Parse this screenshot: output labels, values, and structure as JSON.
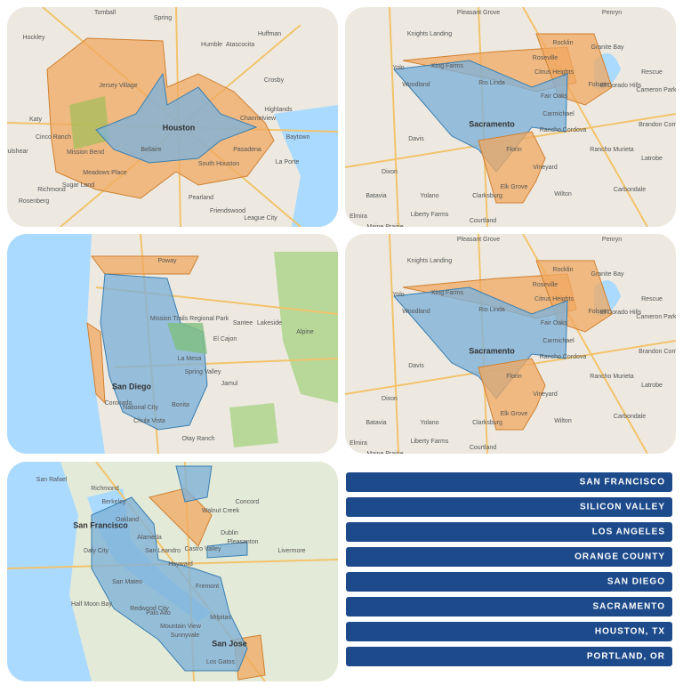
{
  "maps": [
    {
      "labels": [
        "Tomball",
        "Spring",
        "Humble",
        "Atascocita",
        "Huffman",
        "Hockley",
        "Jersey Village",
        "Katy",
        "Cinco Ranch",
        "Houston",
        "Mission Bend",
        "Bellaire",
        "Pasadena",
        "South Houston",
        "Baytown",
        "Highlands",
        "Channelview",
        "Meadows Place",
        "Sugar Land",
        "Pearland",
        "Richmond",
        "Rosenberg",
        "Friendswood",
        "League City",
        "La Porte",
        "Fulshear",
        "Crosby"
      ]
    },
    {
      "labels": [
        "Pleasant Grove",
        "Penryn",
        "Knights Landing",
        "Rocklin",
        "Granite Bay",
        "Roseville",
        "Citrus Heights",
        "Folsom",
        "El Dorado Hills",
        "Rescue",
        "Woodland",
        "Rio Linda",
        "Fair Oaks",
        "Cameron Park",
        "Sacramento",
        "Carmichael",
        "Rancho Cordova",
        "Davis",
        "Florin",
        "Vineyard",
        "Elk Grove",
        "Dixon",
        "Batavia",
        "Yolano",
        "Clarksburg",
        "Wilton",
        "Liberty Farms",
        "Courtland",
        "Elmira",
        "Maine Prairie",
        "Rancho Murieta",
        "Latrobe",
        "Carbondale",
        "Brandon Corner",
        "Yolo",
        "King Farms"
      ]
    },
    {
      "labels": [
        "Poway",
        "San Diego",
        "La Mesa",
        "El Cajon",
        "Chula Vista",
        "Santee",
        "Lakeside",
        "Alpine",
        "Spring Valley",
        "Jamul",
        "Coronado",
        "Bonita",
        "National City",
        "Mission Trails Regional Park",
        "Otay Ranch"
      ]
    },
    {
      "labels": [
        "Pleasant Grove",
        "Penryn",
        "Knights Landing",
        "Rocklin",
        "Granite Bay",
        "Roseville",
        "Citrus Heights",
        "Folsom",
        "El Dorado Hills",
        "Rescue",
        "Woodland",
        "Rio Linda",
        "Fair Oaks",
        "Cameron Park",
        "Sacramento",
        "Carmichael",
        "Rancho Cordova",
        "Davis",
        "Florin",
        "Vineyard",
        "Elk Grove",
        "Dixon",
        "Batavia",
        "Yolano",
        "Clarksburg",
        "Wilton",
        "Liberty Farms",
        "Courtland",
        "Elmira",
        "Maine Prairie",
        "Rancho Murieta",
        "Latrobe",
        "Carbondale",
        "Brandon Corner",
        "Yolo",
        "King Farms"
      ]
    },
    {
      "labels": [
        "San Rafael",
        "Richmond",
        "Concord",
        "Oakland",
        "Berkeley",
        "San Francisco",
        "Daly City",
        "San Leandro",
        "Hayward",
        "Castro Valley",
        "San Mateo",
        "Redwood City",
        "Fremont",
        "Palo Alto",
        "Mountain View",
        "Sunnyvale",
        "Milpitas",
        "San Jose",
        "Los Gatos",
        "Pleasanton",
        "Dublin",
        "Walnut Creek",
        "Alameda",
        "Half Moon Bay",
        "Livermore"
      ]
    }
  ],
  "menu": {
    "items": [
      "SAN FRANCISCO",
      "SILICON VALLEY",
      "LOS ANGELES",
      "ORANGE COUNTY",
      "SAN DIEGO",
      "SACRAMENTO",
      "HOUSTON, TX",
      "PORTLAND, OR"
    ]
  }
}
